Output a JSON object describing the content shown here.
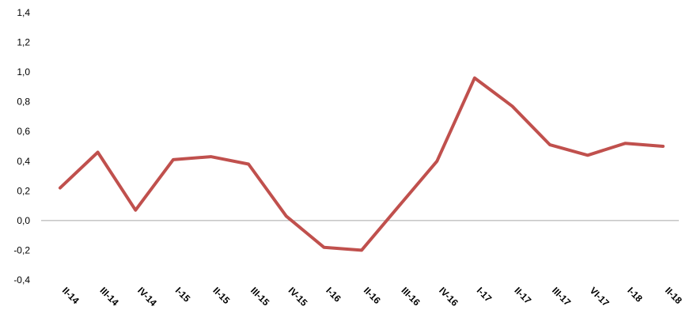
{
  "chart_data": {
    "type": "line",
    "title": "",
    "xlabel": "",
    "ylabel": "",
    "categories": [
      "II-14",
      "III-14",
      "IV-14",
      "I-15",
      "II-15",
      "III-15",
      "IV-15",
      "I-16",
      "II-16",
      "III-16",
      "IV-16",
      "I-17",
      "II-17",
      "III-17",
      "VI-17",
      "I-18",
      "II-18"
    ],
    "y_tick_labels": [
      "-0,4",
      "-0,2",
      "0,0",
      "0,2",
      "0,4",
      "0,6",
      "0,8",
      "1,0",
      "1,2",
      "1,4"
    ],
    "ylim": [
      -0.4,
      1.4
    ],
    "grid": false,
    "legend": "none",
    "series": [
      {
        "color": "#c0504d",
        "values": [
          0.22,
          0.46,
          0.07,
          0.41,
          0.43,
          0.38,
          0.03,
          -0.18,
          -0.2,
          0.1,
          0.4,
          0.96,
          0.77,
          0.51,
          0.44,
          0.52,
          0.5
        ]
      }
    ]
  }
}
